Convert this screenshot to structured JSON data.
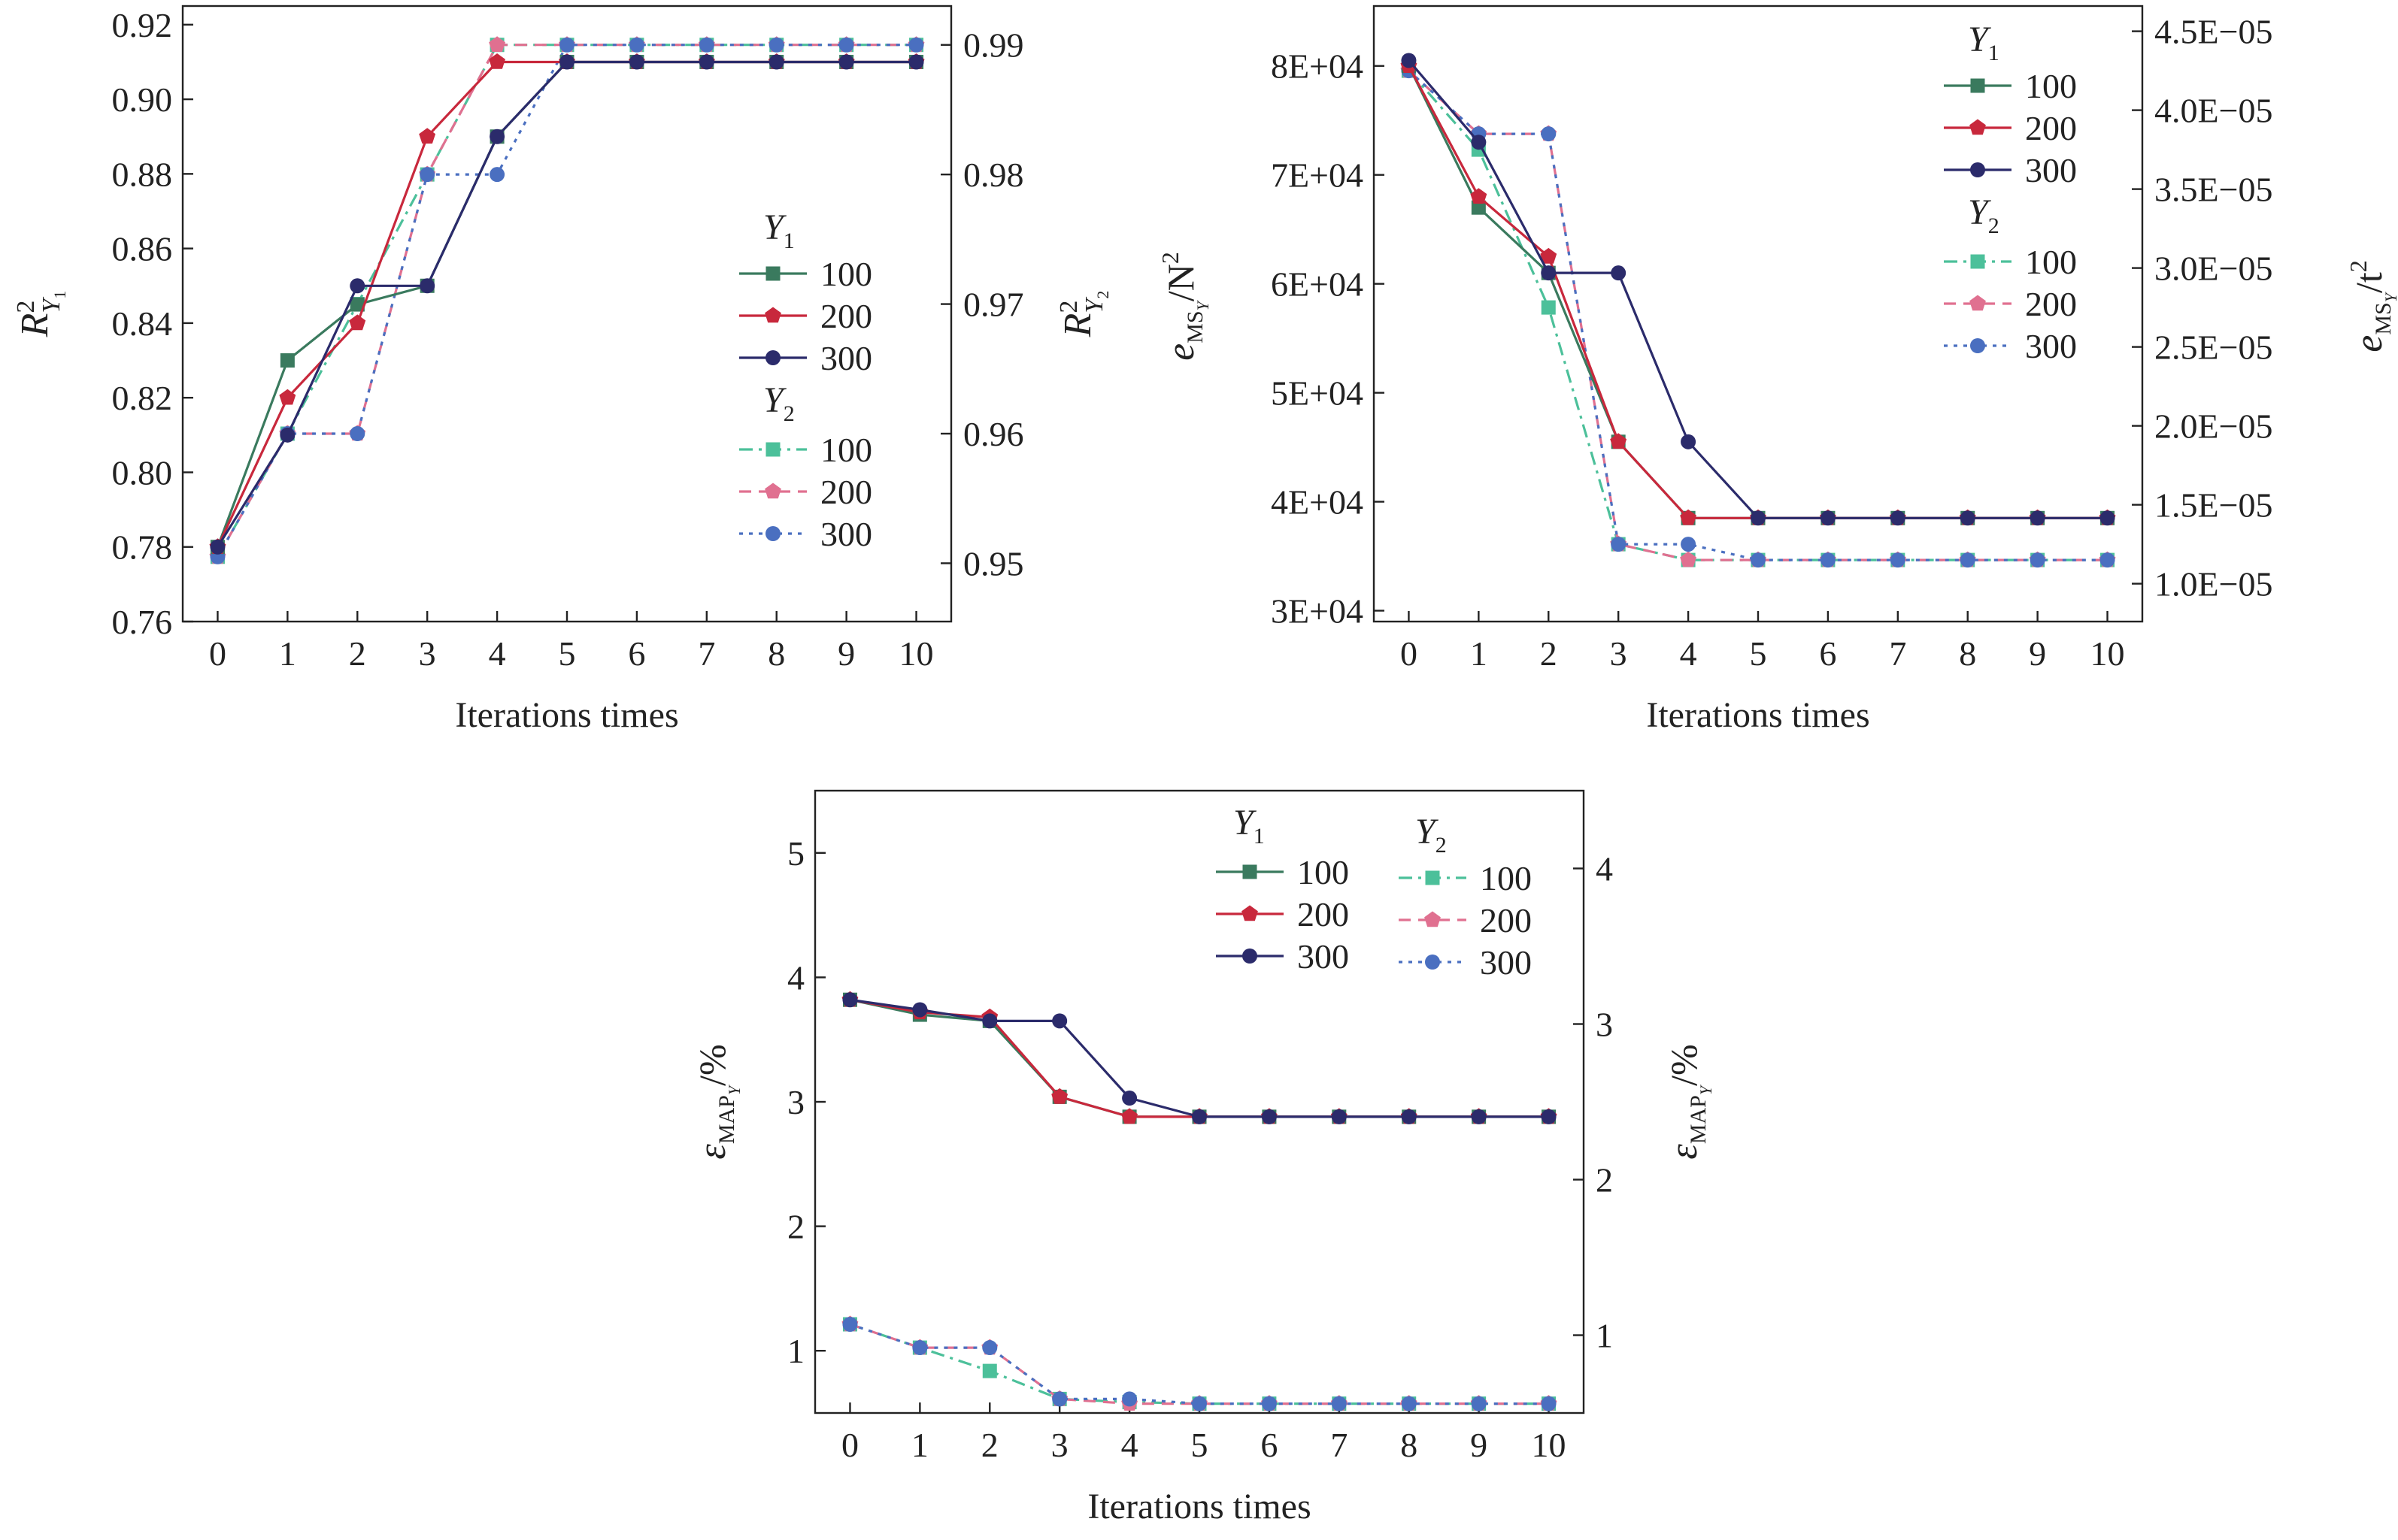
{
  "chart_data": [
    {
      "id": "r2",
      "type": "line",
      "x": [
        0,
        1,
        2,
        3,
        4,
        5,
        6,
        7,
        8,
        9,
        10
      ],
      "xlabel": "Iterations times",
      "xticks": [
        "0",
        "1",
        "2",
        "3",
        "4",
        "5",
        "6",
        "7",
        "8",
        "9",
        "10"
      ],
      "xlim": [
        -0.5,
        10.5
      ],
      "y1label": {
        "main": "R",
        "sup": "2",
        "sub": "Y",
        "subsub": "1"
      },
      "y2label": {
        "main": "R",
        "sup": "2",
        "sub": "Y",
        "subsub": "2"
      },
      "y1lim": [
        0.76,
        0.925
      ],
      "y2lim": [
        0.9455,
        0.993
      ],
      "y1ticks": [
        "0.76",
        "0.78",
        "0.80",
        "0.82",
        "0.84",
        "0.86",
        "0.88",
        "0.90",
        "0.92"
      ],
      "y1tickvals": [
        0.76,
        0.78,
        0.8,
        0.82,
        0.84,
        0.86,
        0.88,
        0.9,
        0.92
      ],
      "y2ticks": [
        "0.95",
        "0.96",
        "0.97",
        "0.98",
        "0.99"
      ],
      "y2tickvals": [
        0.95,
        0.96,
        0.97,
        0.98,
        0.99
      ],
      "legend": {
        "placement": "right-center",
        "group1_title": "Y",
        "group1_sub": "1",
        "group2_title": "Y",
        "group2_sub": "2"
      },
      "series": [
        {
          "group": "Y1",
          "name": "100",
          "axis": "y1",
          "color": "#3a7a5e",
          "marker": "square",
          "dash": "solid",
          "values": [
            0.78,
            0.83,
            0.845,
            0.85,
            0.89,
            0.91,
            0.91,
            0.91,
            0.91,
            0.91,
            0.91
          ]
        },
        {
          "group": "Y1",
          "name": "200",
          "axis": "y1",
          "color": "#c8283c",
          "marker": "pentagon",
          "dash": "solid",
          "values": [
            0.78,
            0.82,
            0.84,
            0.89,
            0.91,
            0.91,
            0.91,
            0.91,
            0.91,
            0.91,
            0.91
          ]
        },
        {
          "group": "Y1",
          "name": "300",
          "axis": "y1",
          "color": "#2b2b6b",
          "marker": "circle",
          "dash": "solid",
          "values": [
            0.78,
            0.81,
            0.85,
            0.85,
            0.89,
            0.91,
            0.91,
            0.91,
            0.91,
            0.91,
            0.91
          ]
        },
        {
          "group": "Y2",
          "name": "100",
          "axis": "y2",
          "color": "#4cc09a",
          "marker": "square",
          "dash": "dashdot",
          "values": [
            0.9505,
            0.96,
            0.97,
            0.98,
            0.99,
            0.99,
            0.99,
            0.99,
            0.99,
            0.99,
            0.99
          ]
        },
        {
          "group": "Y2",
          "name": "200",
          "axis": "y2",
          "color": "#e07090",
          "marker": "pentagon",
          "dash": "dashed",
          "values": [
            0.9505,
            0.96,
            0.96,
            0.98,
            0.99,
            0.99,
            0.99,
            0.99,
            0.99,
            0.99,
            0.99
          ]
        },
        {
          "group": "Y2",
          "name": "300",
          "axis": "y2",
          "color": "#4a6fc0",
          "marker": "circle",
          "dash": "dotted",
          "values": [
            0.9505,
            0.96,
            0.96,
            0.98,
            0.98,
            0.99,
            0.99,
            0.99,
            0.99,
            0.99,
            0.99
          ]
        }
      ]
    },
    {
      "id": "mse",
      "type": "line",
      "x": [
        0,
        1,
        2,
        3,
        4,
        5,
        6,
        7,
        8,
        9,
        10
      ],
      "xlabel": "Iterations times",
      "xticks": [
        "0",
        "1",
        "2",
        "3",
        "4",
        "5",
        "6",
        "7",
        "8",
        "9",
        "10"
      ],
      "xlim": [
        -0.5,
        10.5
      ],
      "y1label": {
        "main": "e",
        "mid": "MS",
        "msub": "Y",
        "unit": "/N",
        "usup": "2"
      },
      "y2label": {
        "main": "e",
        "mid": "MS",
        "msub": "Y",
        "unit": "/t",
        "usup": "2"
      },
      "y1lim": [
        29000,
        85500
      ],
      "y2lim": [
        7.6e-06,
        4.66e-05
      ],
      "y1ticks": [
        "3E+04",
        "4E+04",
        "5E+04",
        "6E+04",
        "7E+04",
        "8E+04"
      ],
      "y1tickvals": [
        30000,
        40000,
        50000,
        60000,
        70000,
        80000
      ],
      "y2ticks": [
        "1.0E−05",
        "1.5E−05",
        "2.0E−05",
        "2.5E−05",
        "3.0E−05",
        "3.5E−05",
        "4.0E−05",
        "4.5E−05"
      ],
      "y2tickvals": [
        1e-05,
        1.5e-05,
        2e-05,
        2.5e-05,
        3e-05,
        3.5e-05,
        4e-05,
        4.5e-05
      ],
      "legend": {
        "placement": "top-right",
        "group1_title": "Y",
        "group1_sub": "1",
        "group2_title": "Y",
        "group2_sub": "2"
      },
      "series": [
        {
          "group": "Y1",
          "name": "100",
          "axis": "y1",
          "color": "#3a7a5e",
          "marker": "square",
          "dash": "solid",
          "values": [
            80000,
            67000,
            61000,
            45500,
            38500,
            38500,
            38500,
            38500,
            38500,
            38500,
            38500
          ]
        },
        {
          "group": "Y1",
          "name": "200",
          "axis": "y1",
          "color": "#c8283c",
          "marker": "pentagon",
          "dash": "solid",
          "values": [
            80000,
            68000,
            62500,
            45500,
            38500,
            38500,
            38500,
            38500,
            38500,
            38500,
            38500
          ]
        },
        {
          "group": "Y1",
          "name": "300",
          "axis": "y1",
          "color": "#2b2b6b",
          "marker": "circle",
          "dash": "solid",
          "values": [
            80500,
            73000,
            61000,
            61000,
            45500,
            38500,
            38500,
            38500,
            38500,
            38500,
            38500
          ]
        },
        {
          "group": "Y2",
          "name": "100",
          "axis": "y2",
          "color": "#4cc09a",
          "marker": "square",
          "dash": "dashdot",
          "values": [
            4.25e-05,
            3.75e-05,
            2.75e-05,
            1.25e-05,
            1.15e-05,
            1.15e-05,
            1.15e-05,
            1.15e-05,
            1.15e-05,
            1.15e-05,
            1.15e-05
          ]
        },
        {
          "group": "Y2",
          "name": "200",
          "axis": "y2",
          "color": "#e07090",
          "marker": "pentagon",
          "dash": "dashed",
          "values": [
            4.25e-05,
            3.85e-05,
            3.85e-05,
            1.25e-05,
            1.15e-05,
            1.15e-05,
            1.15e-05,
            1.15e-05,
            1.15e-05,
            1.15e-05,
            1.15e-05
          ]
        },
        {
          "group": "Y2",
          "name": "300",
          "axis": "y2",
          "color": "#4a6fc0",
          "marker": "circle",
          "dash": "dotted",
          "values": [
            4.25e-05,
            3.85e-05,
            3.85e-05,
            1.25e-05,
            1.25e-05,
            1.15e-05,
            1.15e-05,
            1.15e-05,
            1.15e-05,
            1.15e-05,
            1.15e-05
          ]
        }
      ]
    },
    {
      "id": "map",
      "type": "line",
      "x": [
        0,
        1,
        2,
        3,
        4,
        5,
        6,
        7,
        8,
        9,
        10
      ],
      "xlabel": "Iterations times",
      "xticks": [
        "0",
        "1",
        "2",
        "3",
        "4",
        "5",
        "6",
        "7",
        "8",
        "9",
        "10"
      ],
      "xlim": [
        -0.5,
        10.5
      ],
      "y1label": {
        "main": "ε",
        "mid": "MAP",
        "msub": "Y",
        "unit": "/%"
      },
      "y2label": {
        "main": "ε",
        "mid": "MAP",
        "msub": "Y",
        "unit": "/%"
      },
      "y1lim": [
        0.5,
        5.5
      ],
      "y2lim": [
        0.5,
        4.5
      ],
      "y1ticks": [
        "1",
        "2",
        "3",
        "4",
        "5"
      ],
      "y1tickvals": [
        1,
        2,
        3,
        4,
        5
      ],
      "y2ticks": [
        "1",
        "2",
        "3",
        "4"
      ],
      "y2tickvals": [
        1,
        2,
        3,
        4
      ],
      "legend": {
        "placement": "top-right",
        "group1_title": "Y",
        "group1_sub": "1",
        "group2_title": "Y",
        "group2_sub": "2"
      },
      "series": [
        {
          "group": "Y1",
          "name": "100",
          "axis": "y1",
          "color": "#3a7a5e",
          "marker": "square",
          "dash": "solid",
          "values": [
            3.82,
            3.7,
            3.65,
            3.04,
            2.88,
            2.88,
            2.88,
            2.88,
            2.88,
            2.88,
            2.88
          ]
        },
        {
          "group": "Y1",
          "name": "200",
          "axis": "y1",
          "color": "#c8283c",
          "marker": "pentagon",
          "dash": "solid",
          "values": [
            3.82,
            3.72,
            3.68,
            3.04,
            2.88,
            2.88,
            2.88,
            2.88,
            2.88,
            2.88,
            2.88
          ]
        },
        {
          "group": "Y1",
          "name": "300",
          "axis": "y1",
          "color": "#2b2b6b",
          "marker": "circle",
          "dash": "solid",
          "values": [
            3.82,
            3.74,
            3.65,
            3.65,
            3.03,
            2.88,
            2.88,
            2.88,
            2.88,
            2.88,
            2.88
          ]
        },
        {
          "group": "Y2",
          "name": "100",
          "axis": "y2",
          "color": "#4cc09a",
          "marker": "square",
          "dash": "dashdot",
          "values": [
            1.07,
            0.92,
            0.77,
            0.59,
            0.57,
            0.56,
            0.56,
            0.56,
            0.56,
            0.56,
            0.56
          ]
        },
        {
          "group": "Y2",
          "name": "200",
          "axis": "y2",
          "color": "#e07090",
          "marker": "pentagon",
          "dash": "dashed",
          "values": [
            1.07,
            0.92,
            0.92,
            0.59,
            0.56,
            0.56,
            0.56,
            0.56,
            0.56,
            0.56,
            0.56
          ]
        },
        {
          "group": "Y2",
          "name": "300",
          "axis": "y2",
          "color": "#4a6fc0",
          "marker": "circle",
          "dash": "dotted",
          "values": [
            1.07,
            0.92,
            0.92,
            0.59,
            0.59,
            0.56,
            0.56,
            0.56,
            0.56,
            0.56,
            0.56
          ]
        }
      ]
    }
  ]
}
